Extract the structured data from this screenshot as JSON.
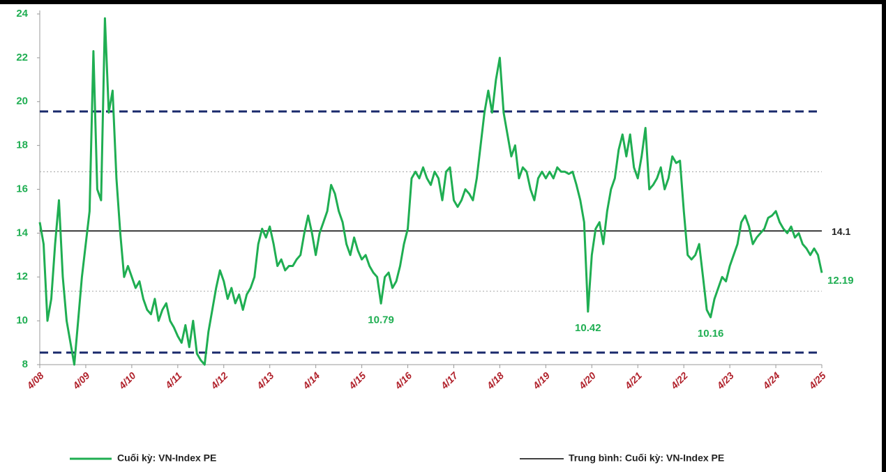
{
  "chart_data": {
    "type": "line",
    "categories": [
      "4/08",
      null,
      null,
      null,
      null,
      null,
      null,
      null,
      null,
      null,
      null,
      null,
      "4/09",
      null,
      null,
      null,
      null,
      null,
      null,
      null,
      null,
      null,
      null,
      null,
      "4/10",
      null,
      null,
      null,
      null,
      null,
      null,
      null,
      null,
      null,
      null,
      null,
      "4/11",
      null,
      null,
      null,
      null,
      null,
      null,
      null,
      null,
      null,
      null,
      null,
      "4/12",
      null,
      null,
      null,
      null,
      null,
      null,
      null,
      null,
      null,
      null,
      null,
      "4/13",
      null,
      null,
      null,
      null,
      null,
      null,
      null,
      null,
      null,
      null,
      null,
      "4/14",
      null,
      null,
      null,
      null,
      null,
      null,
      null,
      null,
      null,
      null,
      null,
      "4/15",
      null,
      null,
      null,
      null,
      null,
      null,
      null,
      null,
      null,
      null,
      null,
      "4/16",
      null,
      null,
      null,
      null,
      null,
      null,
      null,
      null,
      null,
      null,
      null,
      "4/17",
      null,
      null,
      null,
      null,
      null,
      null,
      null,
      null,
      null,
      null,
      null,
      "4/18",
      null,
      null,
      null,
      null,
      null,
      null,
      null,
      null,
      null,
      null,
      null,
      "4/19",
      null,
      null,
      null,
      null,
      null,
      null,
      null,
      null,
      null,
      null,
      null,
      "4/20",
      null,
      null,
      null,
      null,
      null,
      null,
      null,
      null,
      null,
      null,
      null,
      "4/21",
      null,
      null,
      null,
      null,
      null,
      null,
      null,
      null,
      null,
      null,
      null,
      "4/22",
      null,
      null,
      null,
      null,
      null,
      null,
      null,
      null,
      null,
      null,
      null,
      "4/23",
      null,
      null,
      null,
      null,
      null,
      null,
      null,
      null,
      null,
      null,
      null,
      "4/24",
      null,
      null,
      null,
      null,
      null,
      null,
      null,
      null,
      null,
      null,
      null,
      "4/25"
    ],
    "series": [
      {
        "name": "Cuối kỳ: VN-Index PE",
        "color": "#1fae52",
        "values": [
          14.5,
          13.5,
          10,
          11,
          13.5,
          15.5,
          12,
          10,
          9,
          8,
          10,
          12,
          13.5,
          15,
          22.3,
          16,
          15.5,
          23.8,
          19.5,
          20.5,
          16.5,
          14,
          12,
          12.5,
          12,
          11.5,
          11.8,
          11,
          10.5,
          10.3,
          11,
          10,
          10.5,
          10.8,
          10,
          9.7,
          9.3,
          9,
          9.8,
          8.8,
          10,
          8.5,
          8.2,
          8,
          9.5,
          10.5,
          11.5,
          12.3,
          11.8,
          11,
          11.5,
          10.8,
          11.2,
          10.5,
          11.2,
          11.5,
          12,
          13.5,
          14.2,
          13.8,
          14.3,
          13.5,
          12.5,
          12.8,
          12.3,
          12.5,
          12.5,
          12.8,
          13,
          14,
          14.8,
          14,
          13,
          14,
          14.5,
          15,
          16.2,
          15.8,
          15,
          14.5,
          13.5,
          13,
          13.8,
          13.2,
          12.8,
          13,
          12.5,
          12.2,
          12,
          10.79,
          12,
          12.2,
          11.5,
          11.8,
          12.5,
          13.5,
          14.2,
          16.5,
          16.8,
          16.5,
          17,
          16.5,
          16.2,
          16.8,
          16.5,
          15.5,
          16.8,
          17,
          15.5,
          15.2,
          15.5,
          16,
          15.8,
          15.5,
          16.5,
          18,
          19.5,
          20.5,
          19.5,
          21,
          22,
          19.5,
          18.5,
          17.5,
          18,
          16.5,
          17,
          16.8,
          16,
          15.5,
          16.5,
          16.8,
          16.5,
          16.8,
          16.5,
          17,
          16.8,
          16.8,
          16.7,
          16.8,
          16.2,
          15.5,
          14.5,
          10.42,
          13,
          14.2,
          14.5,
          13.5,
          15,
          16,
          16.5,
          17.8,
          18.5,
          17.5,
          18.5,
          17,
          16.5,
          17.5,
          18.8,
          16,
          16.2,
          16.5,
          17,
          16,
          16.5,
          17.5,
          17.2,
          17.3,
          15,
          13,
          12.8,
          13,
          13.5,
          12,
          10.5,
          10.16,
          11,
          11.5,
          12,
          11.8,
          12.5,
          13,
          13.5,
          14.5,
          14.8,
          14.3,
          13.5,
          13.8,
          14,
          14.2,
          14.7,
          14.8,
          15,
          14.5,
          14.2,
          14,
          14.3,
          13.8,
          14,
          13.5,
          13.3,
          13,
          13.3,
          13,
          12.19
        ],
        "value_labels": [
          null,
          null,
          null,
          null,
          null,
          null,
          null,
          null,
          null,
          null,
          null,
          null,
          null,
          null,
          null,
          null,
          null,
          null,
          null,
          null,
          null,
          null,
          null,
          null,
          null,
          null,
          null,
          null,
          null,
          null,
          null,
          null,
          null,
          null,
          null,
          null,
          null,
          null,
          null,
          null,
          null,
          null,
          null,
          null,
          null,
          null,
          null,
          null,
          null,
          null,
          null,
          null,
          null,
          null,
          null,
          null,
          null,
          null,
          null,
          null,
          null,
          null,
          null,
          null,
          null,
          null,
          null,
          null,
          null,
          null,
          null,
          null,
          null,
          null,
          null,
          null,
          null,
          null,
          null,
          null,
          null,
          null,
          null,
          null,
          null,
          null,
          null,
          null,
          null,
          "10.79",
          null,
          null,
          null,
          null,
          null,
          null,
          null,
          null,
          null,
          null,
          null,
          null,
          null,
          null,
          null,
          null,
          null,
          null,
          null,
          null,
          null,
          null,
          null,
          null,
          null,
          null,
          null,
          null,
          null,
          null,
          null,
          null,
          null,
          null,
          null,
          null,
          null,
          null,
          null,
          null,
          null,
          null,
          null,
          null,
          null,
          null,
          null,
          null,
          null,
          null,
          null,
          null,
          null,
          "10.42",
          null,
          null,
          null,
          null,
          null,
          null,
          null,
          null,
          null,
          null,
          null,
          null,
          null,
          null,
          null,
          null,
          null,
          null,
          null,
          null,
          null,
          null,
          null,
          null,
          null,
          null,
          null,
          null,
          null,
          null,
          null,
          "10.16",
          null,
          null,
          null,
          null,
          null,
          null,
          null,
          null,
          null,
          null,
          null,
          null,
          null,
          null,
          null,
          null,
          null,
          null,
          null,
          null,
          null,
          null,
          null,
          null,
          null,
          null,
          null,
          null,
          "12.19"
        ]
      }
    ],
    "hlines": [
      {
        "name": "Trung bình: Cuối kỳ: VN-Index PE",
        "value": 14.1,
        "color": "#000000",
        "style": "solid"
      },
      {
        "value": 19.55,
        "color": "#1a2a6c",
        "style": "dashed"
      },
      {
        "value": 8.55,
        "color": "#1a2a6c",
        "style": "dashed"
      },
      {
        "value": 16.8,
        "color": "#b0b0b0",
        "style": "dotted"
      },
      {
        "value": 11.35,
        "color": "#b0b0b0",
        "style": "dotted"
      }
    ],
    "ylim": [
      8,
      24
    ],
    "yticks": [
      8,
      10,
      12,
      14,
      16,
      18,
      20,
      22,
      24
    ],
    "grid": false
  }
}
